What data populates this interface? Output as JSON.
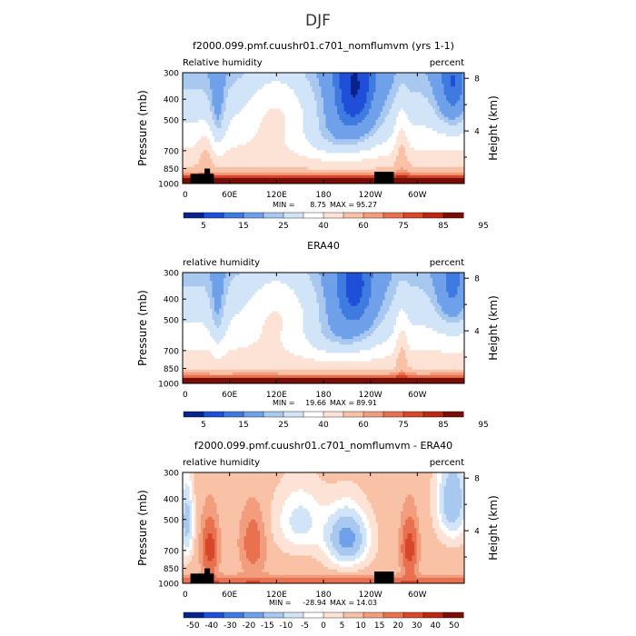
{
  "figure_title": "DJF",
  "colors": {
    "rh": [
      "#08238c",
      "#1f4fd8",
      "#3f7ae0",
      "#6fa0ea",
      "#a8c8f0",
      "#d2e4f7",
      "#ffffff",
      "#fde3d6",
      "#f9c1a6",
      "#f29d7d",
      "#e8714f",
      "#d8472a",
      "#b82815",
      "#7a0d06"
    ],
    "diff": [
      "#08238c",
      "#1f4fd8",
      "#3f7ae0",
      "#6fa0ea",
      "#a8c8f0",
      "#d2e4f7",
      "#ffffff",
      "#fde3d6",
      "#f9c1a6",
      "#f29d7d",
      "#e8714f",
      "#d8472a",
      "#b82815",
      "#7a0d06"
    ]
  },
  "chart_data": [
    {
      "type": "heatmap",
      "title": "f2000.099.pmf.cuushr01.c701_nomflumvm (yrs 1-1)",
      "left_label": "Relative humidity",
      "right_label": "percent",
      "ylabel": "Pressure (mb)",
      "y2label": "Height (km)",
      "x_ticks": [
        "0",
        "60E",
        "120E",
        "180",
        "120W",
        "60W"
      ],
      "y_ticks": [
        "300",
        "400",
        "500",
        "700",
        "850",
        "1000"
      ],
      "y2_ticks": [
        "8",
        "4"
      ],
      "min_label": "MIN =",
      "min_value": "8.75",
      "max_label": "MAX =",
      "max_value": "95.27",
      "colorbar_labels": [
        "5",
        "15",
        "25",
        "40",
        "60",
        "75",
        "85",
        "95"
      ],
      "ylim": [
        1000,
        300
      ],
      "xlim": [
        0,
        360
      ],
      "terrain": true
    },
    {
      "type": "heatmap",
      "title": "ERA40",
      "left_label": "relative humidity",
      "right_label": "percent",
      "ylabel": "Pressure (mb)",
      "y2label": "Height (km)",
      "x_ticks": [
        "0",
        "60E",
        "120E",
        "180",
        "120W",
        "60W"
      ],
      "y_ticks": [
        "300",
        "400",
        "500",
        "700",
        "850",
        "1000"
      ],
      "y2_ticks": [
        "8",
        "4"
      ],
      "min_label": "MIN =",
      "min_value": "19.66",
      "max_label": "MAX =",
      "max_value": "89.91",
      "colorbar_labels": [
        "5",
        "15",
        "25",
        "40",
        "60",
        "75",
        "85",
        "95"
      ],
      "ylim": [
        1000,
        300
      ],
      "xlim": [
        0,
        360
      ],
      "terrain": false
    },
    {
      "type": "heatmap",
      "title": "f2000.099.pmf.cuushr01.c701_nomflumvm - ERA40",
      "left_label": "relative humidity",
      "right_label": "percent",
      "ylabel": "Pressure (mb)",
      "y2label": "Height (km)",
      "x_ticks": [
        "0",
        "60E",
        "120E",
        "180",
        "120W",
        "60W"
      ],
      "y_ticks": [
        "300",
        "400",
        "500",
        "700",
        "850",
        "1000"
      ],
      "y2_ticks": [
        "8",
        "4"
      ],
      "min_label": "MIN =",
      "min_value": "-28.94",
      "max_label": "MAX =",
      "max_value": "14.03",
      "colorbar_labels": [
        "-50",
        "-40",
        "-30",
        "-20",
        "-15",
        "-10",
        "-5",
        "0",
        "5",
        "10",
        "15",
        "20",
        "30",
        "40",
        "50"
      ],
      "ylim": [
        1000,
        300
      ],
      "xlim": [
        0,
        360
      ],
      "terrain": true
    }
  ]
}
